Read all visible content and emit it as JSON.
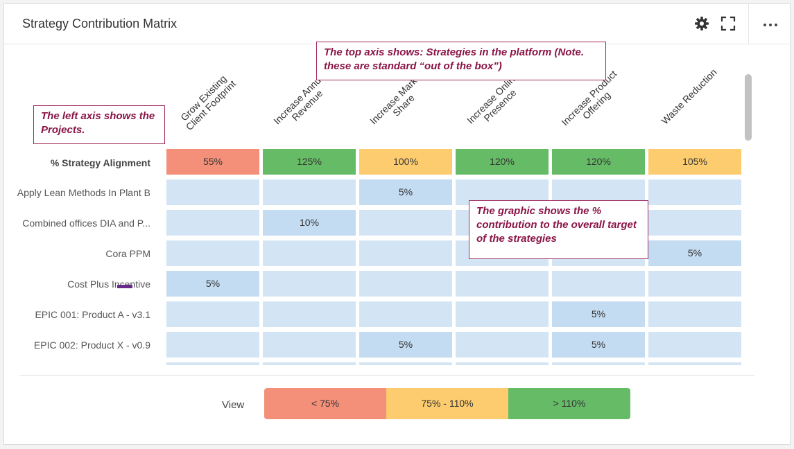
{
  "header": {
    "title": "Strategy Contribution Matrix",
    "settings_icon": "gear-icon",
    "expand_icon": "expand-icon",
    "more_icon": "more-icon"
  },
  "columns": [
    {
      "label": "Grow Existing Client Footprint"
    },
    {
      "label": "Increase Annual Revenue"
    },
    {
      "label": "Increase Market Share"
    },
    {
      "label": "Increase Online Presence"
    },
    {
      "label": "Increase Product Offering"
    },
    {
      "label": "Waste Reduction"
    }
  ],
  "alignment": {
    "label": "% Strategy Alignment",
    "values": [
      "55%",
      "125%",
      "100%",
      "120%",
      "120%",
      "105%"
    ],
    "status": [
      "red",
      "green",
      "yellow",
      "green",
      "green",
      "yellow"
    ]
  },
  "rows": [
    {
      "label": "Apply Lean Methods In Plant B",
      "values": [
        "",
        "",
        "5%",
        "",
        "",
        ""
      ]
    },
    {
      "label": "Combined offices DIA and P...",
      "values": [
        "",
        "10%",
        "",
        "",
        "",
        ""
      ]
    },
    {
      "label": "Cora PPM",
      "values": [
        "",
        "",
        "",
        "",
        "",
        "5%"
      ]
    },
    {
      "label": "Cost Plus Incentive",
      "values": [
        "5%",
        "",
        "",
        "",
        "",
        ""
      ]
    },
    {
      "label": "EPIC 001: Product A - v3.1",
      "values": [
        "",
        "",
        "",
        "",
        "5%",
        ""
      ]
    },
    {
      "label": "EPIC 002: Product X - v0.9",
      "values": [
        "",
        "",
        "5%",
        "",
        "5%",
        ""
      ]
    }
  ],
  "legend": {
    "label": "View",
    "items": [
      "< 75%",
      "75% - 110%",
      "> 110%"
    ]
  },
  "annotations": {
    "top_axis": "The top axis shows:  Strategies in the platform (Note. these are standard “out of the box”)",
    "left_axis": "The left axis shows the Projects.",
    "graphic": "The graphic shows the % contribution to the overall target of the strategies"
  },
  "colors": {
    "red": "#f4907a",
    "yellow": "#fccc6e",
    "green": "#66bb66",
    "cell": "#d3e5f5",
    "accent": "#a0275a"
  }
}
